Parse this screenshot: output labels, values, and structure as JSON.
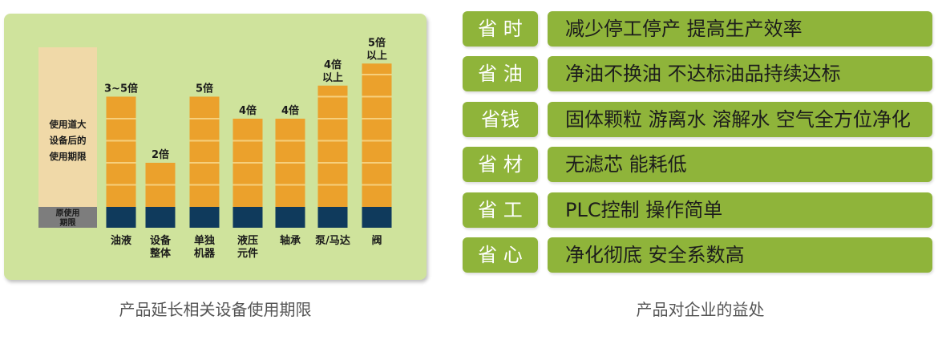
{
  "chart_data": {
    "type": "bar",
    "baseline_box": {
      "text": "使用道大\n设备后的\n使用期限",
      "original_label": "原使用\n期限"
    },
    "categories": [
      "油液",
      "设备\n整体",
      "单独\n机器",
      "液压\n元件",
      "轴承",
      "泵/马达",
      "阀"
    ],
    "value_labels": [
      "3~5倍",
      "2倍",
      "5倍",
      "4倍",
      "4倍",
      "4倍\n以上",
      "5倍\n以上"
    ],
    "values": [
      5,
      2,
      5,
      4,
      4,
      5.5,
      6.5
    ],
    "colors": {
      "original": "#0f3a5c",
      "extended": "#eba12c",
      "extended_line": "#f6cf7c",
      "panel": "#cfe39c",
      "baseline_box": "#f0d9a8",
      "baseline_original": "#7d7d7d"
    }
  },
  "captions": {
    "chart": "产品延长相关设备使用期限",
    "benefits": "产品对企业的益处"
  },
  "benefits": [
    {
      "tag": "省 时",
      "desc": "减少停工停产  提高生产效率"
    },
    {
      "tag": "省 油",
      "desc": "净油不换油  不达标油品持续达标"
    },
    {
      "tag": "省钱",
      "desc": "固体颗粒 游离水 溶解水 空气全方位净化"
    },
    {
      "tag": "省 材",
      "desc": " 无滤芯  能耗低"
    },
    {
      "tag": "省 工",
      "desc": "PLC控制  操作简单"
    },
    {
      "tag": "省 心",
      "desc": "净化彻底  安全系数高"
    }
  ],
  "theme": {
    "accent_green": "#8fb43a"
  }
}
